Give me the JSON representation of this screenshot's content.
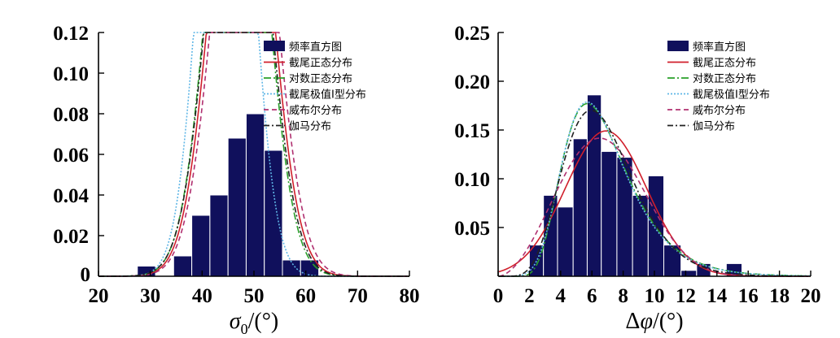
{
  "chart_data": [
    {
      "type": "bar",
      "xlabel": "σ0/(°)",
      "ylabel": "",
      "xlim": [
        20,
        80
      ],
      "ylim": [
        0,
        0.12
      ],
      "x_ticks": [
        "20",
        "30",
        "40",
        "50",
        "60",
        "70",
        "80"
      ],
      "y_ticks": [
        "0",
        "0.02",
        "0.04",
        "0.06",
        "0.08",
        "0.10",
        "0.12"
      ],
      "legend": [
        "频率直方图",
        "截尾正态分布",
        "对数正态分布",
        "截尾极值Ⅰ型分布",
        "威布尔分布",
        "伽马分布"
      ],
      "legend_position": "top-right",
      "histogram": {
        "name": "频率直方图",
        "color": "#10105c",
        "bins": [
          {
            "x0": 27.5,
            "x1": 31.0,
            "value": 0.005
          },
          {
            "x0": 31.0,
            "x1": 34.5,
            "value": 0.0
          },
          {
            "x0": 34.5,
            "x1": 38.0,
            "value": 0.01
          },
          {
            "x0": 38.0,
            "x1": 41.5,
            "value": 0.03
          },
          {
            "x0": 41.5,
            "x1": 45.0,
            "value": 0.04
          },
          {
            "x0": 45.0,
            "x1": 48.5,
            "value": 0.068
          },
          {
            "x0": 48.5,
            "x1": 52.0,
            "value": 0.08
          },
          {
            "x0": 52.0,
            "x1": 55.5,
            "value": 0.062
          },
          {
            "x0": 55.5,
            "x1": 59.0,
            "value": 0.008
          },
          {
            "x0": 59.0,
            "x1": 62.5,
            "value": 0.008
          }
        ]
      },
      "series": [
        {
          "name": "截尾正态分布",
          "color": "#d01f2b",
          "dash": "",
          "type": "normal",
          "params": {
            "mu": 47.5,
            "sigma": 5.4
          }
        },
        {
          "name": "对数正态分布",
          "color": "#2aa02a",
          "dash": "9,3,2,3",
          "type": "normal",
          "params": {
            "mu": 46.8,
            "sigma": 5.3
          }
        },
        {
          "name": "截尾极值Ⅰ型分布",
          "color": "#5fb6e6",
          "dash": "2,2",
          "type": "normal",
          "params": {
            "mu": 44.6,
            "sigma": 4.6
          }
        },
        {
          "name": "威布尔分布",
          "color": "#b03070",
          "dash": "6,4",
          "type": "normal",
          "params": {
            "mu": 48.2,
            "sigma": 5.5
          }
        },
        {
          "name": "伽马分布",
          "color": "#222222",
          "dash": "7,3,2,3",
          "type": "normal",
          "params": {
            "mu": 47.0,
            "sigma": 5.4
          }
        }
      ]
    },
    {
      "type": "bar",
      "xlabel": "Δφ/(°)",
      "ylabel": "",
      "xlim": [
        0,
        20
      ],
      "ylim": [
        0,
        0.25
      ],
      "x_ticks": [
        "0",
        "2",
        "4",
        "6",
        "8",
        "10",
        "12",
        "14",
        "16",
        "18",
        "20"
      ],
      "y_ticks": [
        "0.05",
        "0.10",
        "0.15",
        "0.20",
        "0.25"
      ],
      "legend": [
        "频率直方图",
        "截尾正态分布",
        "对数正态分布",
        "截尾极值Ⅰ型分布",
        "威布尔分布",
        "伽马分布"
      ],
      "legend_position": "top-right",
      "histogram": {
        "name": "频率直方图",
        "color": "#10105c",
        "bins": [
          {
            "x0": 2.0,
            "x1": 2.9,
            "value": 0.032
          },
          {
            "x0": 2.9,
            "x1": 3.8,
            "value": 0.083
          },
          {
            "x0": 3.8,
            "x1": 4.8,
            "value": 0.071
          },
          {
            "x0": 4.8,
            "x1": 5.7,
            "value": 0.141
          },
          {
            "x0": 5.7,
            "x1": 6.6,
            "value": 0.186
          },
          {
            "x0": 6.6,
            "x1": 7.6,
            "value": 0.128
          },
          {
            "x0": 7.6,
            "x1": 8.6,
            "value": 0.122
          },
          {
            "x0": 8.6,
            "x1": 9.6,
            "value": 0.083
          },
          {
            "x0": 9.6,
            "x1": 10.6,
            "value": 0.103
          },
          {
            "x0": 10.6,
            "x1": 11.7,
            "value": 0.032
          },
          {
            "x0": 11.7,
            "x1": 12.7,
            "value": 0.006
          },
          {
            "x0": 12.7,
            "x1": 13.6,
            "value": 0.013
          },
          {
            "x0": 13.6,
            "x1": 14.6,
            "value": 0.0
          },
          {
            "x0": 14.6,
            "x1": 15.6,
            "value": 0.013
          }
        ]
      },
      "series": [
        {
          "name": "截尾正态分布",
          "color": "#d01f2b",
          "dash": "",
          "type": "normal",
          "params": {
            "mu": 6.9,
            "sigma": 2.6
          }
        },
        {
          "name": "对数正态分布",
          "color": "#2aa02a",
          "dash": "9,3,2,3",
          "type": "lognormal",
          "params": {
            "mu": 1.87,
            "sigma": 0.36
          }
        },
        {
          "name": "截尾极值Ⅰ型分布",
          "color": "#5fb6e6",
          "dash": "2,2",
          "type": "gumbel",
          "params": {
            "mu": 5.7,
            "beta": 2.0
          }
        },
        {
          "name": "威布尔分布",
          "color": "#b03070",
          "dash": "6,4",
          "type": "weibull",
          "params": {
            "k": 2.8,
            "lambda": 7.6
          }
        },
        {
          "name": "伽马分布",
          "color": "#222222",
          "dash": "7,3,2,3",
          "type": "gamma",
          "params": {
            "k": 8.0,
            "theta": 0.85
          }
        }
      ]
    }
  ]
}
